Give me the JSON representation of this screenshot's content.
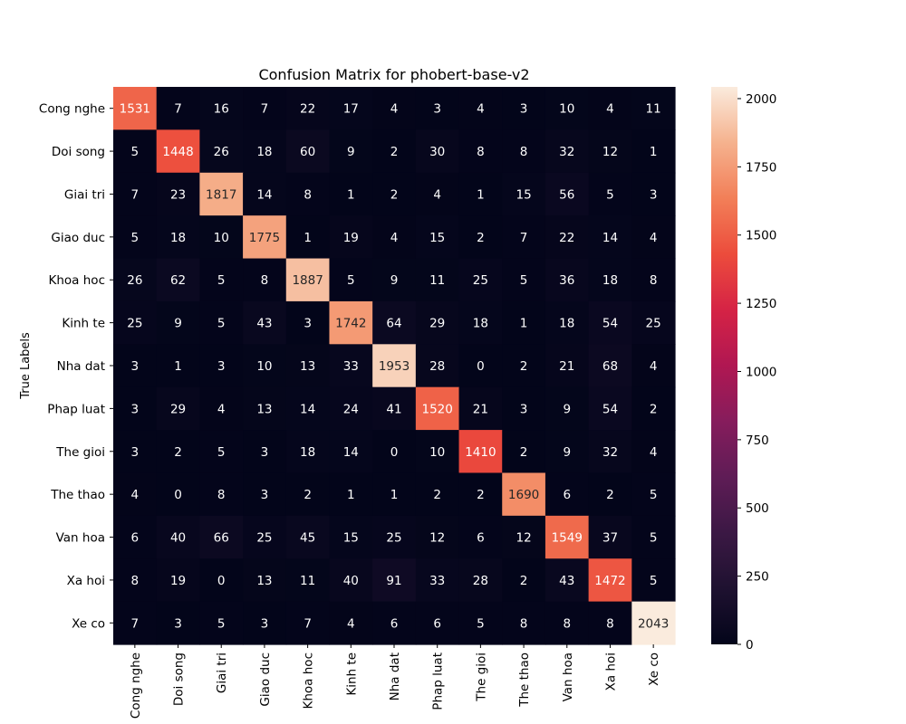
{
  "chart_data": {
    "type": "heatmap",
    "title": "Confusion Matrix for phobert-base-v2",
    "ylabel": "True Labels",
    "xlabel": "",
    "row_labels": [
      "Cong nghe",
      "Doi song",
      "Giai tri",
      "Giao duc",
      "Khoa hoc",
      "Kinh te",
      "Nha dat",
      "Phap luat",
      "The gioi",
      "The thao",
      "Van hoa",
      "Xa hoi",
      "Xe co"
    ],
    "col_labels": [
      "Cong nghe",
      "Doi song",
      "Giai tri",
      "Giao duc",
      "Khoa hoc",
      "Kinh te",
      "Nha dat",
      "Phap luat",
      "The gioi",
      "The thao",
      "Van hoa",
      "Xa hoi",
      "Xe co"
    ],
    "values": [
      [
        1531,
        7,
        16,
        7,
        22,
        17,
        4,
        3,
        4,
        3,
        10,
        4,
        11
      ],
      [
        5,
        1448,
        26,
        18,
        60,
        9,
        2,
        30,
        8,
        8,
        32,
        12,
        1
      ],
      [
        7,
        23,
        1817,
        14,
        8,
        1,
        2,
        4,
        1,
        15,
        56,
        5,
        3
      ],
      [
        5,
        18,
        10,
        1775,
        1,
        19,
        4,
        15,
        2,
        7,
        22,
        14,
        4
      ],
      [
        26,
        62,
        5,
        8,
        1887,
        5,
        9,
        11,
        25,
        5,
        36,
        18,
        8
      ],
      [
        25,
        9,
        5,
        43,
        3,
        1742,
        64,
        29,
        18,
        1,
        18,
        54,
        25
      ],
      [
        3,
        1,
        3,
        10,
        13,
        33,
        1953,
        28,
        0,
        2,
        21,
        68,
        4
      ],
      [
        3,
        29,
        4,
        13,
        14,
        24,
        41,
        1520,
        21,
        3,
        9,
        54,
        2
      ],
      [
        3,
        2,
        5,
        3,
        18,
        14,
        0,
        10,
        1410,
        2,
        9,
        32,
        4
      ],
      [
        4,
        0,
        8,
        3,
        2,
        1,
        1,
        2,
        2,
        1690,
        6,
        2,
        5
      ],
      [
        6,
        40,
        66,
        25,
        45,
        15,
        25,
        12,
        6,
        12,
        1549,
        37,
        5
      ],
      [
        8,
        19,
        0,
        13,
        11,
        40,
        91,
        33,
        28,
        2,
        43,
        1472,
        5
      ],
      [
        7,
        3,
        5,
        3,
        7,
        4,
        6,
        6,
        5,
        8,
        8,
        8,
        2043
      ]
    ],
    "colormap": "rocket",
    "color_range": [
      0,
      2043
    ],
    "colorbar_ticks": [
      0,
      250,
      500,
      750,
      1000,
      1250,
      1500,
      1750,
      2000
    ],
    "colorbar_tick_labels": [
      "0",
      "250",
      "500",
      "750",
      "1000",
      "1250",
      "1500",
      "1750",
      "2000"
    ],
    "grid": false,
    "annotations": true
  }
}
